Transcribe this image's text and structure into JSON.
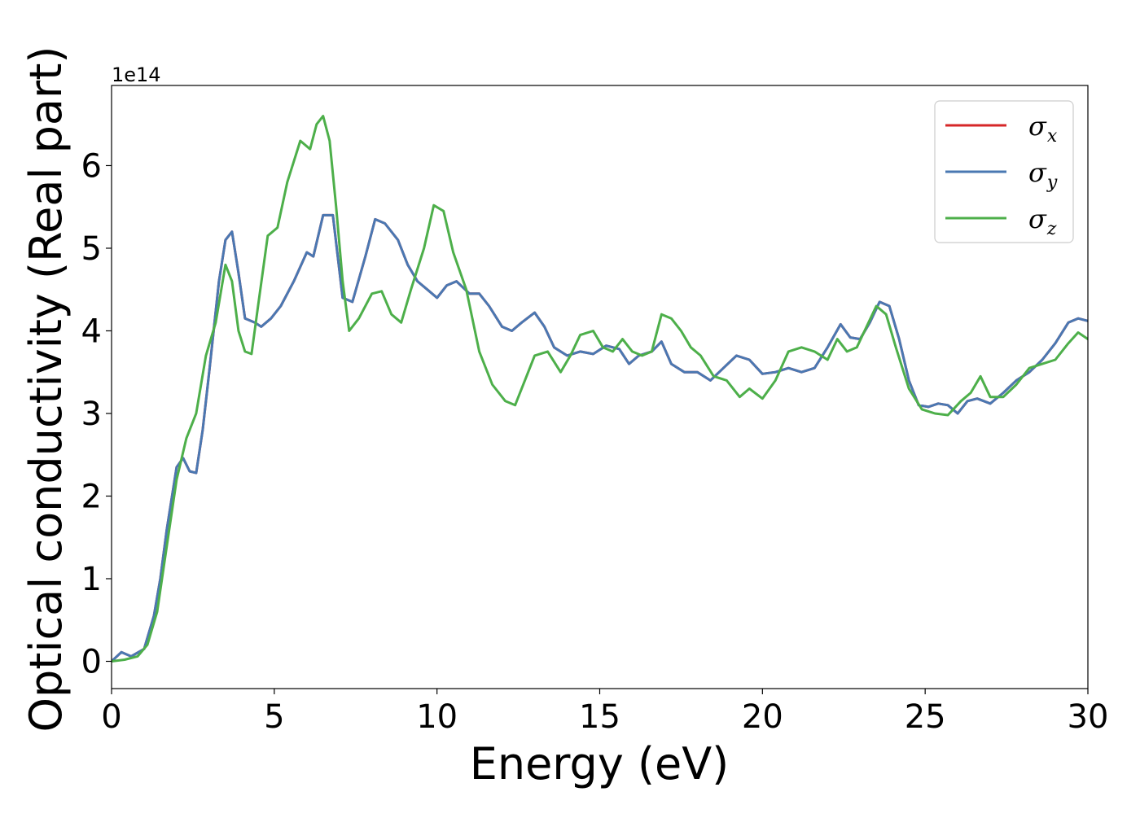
{
  "chart_data": {
    "type": "line",
    "xlabel": "Energy (eV)",
    "ylabel": "Optical conductivity (Real part)",
    "y_offset_label": "1e14",
    "xlim": [
      0,
      30
    ],
    "ylim": [
      -0.33,
      6.97
    ],
    "x_ticks": [
      0,
      5,
      10,
      15,
      20,
      25,
      30
    ],
    "y_ticks": [
      0,
      1,
      2,
      3,
      4,
      5,
      6
    ],
    "grid": false,
    "legend_position": "top-right",
    "series": [
      {
        "name": "σ_x",
        "legend_symbol": "σ",
        "legend_sub": "x",
        "color": "#d62728",
        "x": [
          0,
          0.3,
          0.6,
          1.0,
          1.3,
          1.5,
          1.7,
          2.0,
          2.2,
          2.4,
          2.6,
          2.8,
          3.0,
          3.3,
          3.5,
          3.7,
          3.9,
          4.1,
          4.4,
          4.6,
          4.9,
          5.2,
          5.6,
          6.0,
          6.2,
          6.5,
          6.8,
          7.1,
          7.4,
          7.8,
          8.1,
          8.4,
          8.8,
          9.1,
          9.4,
          9.7,
          10.0,
          10.3,
          10.6,
          11.0,
          11.3,
          11.6,
          12.0,
          12.3,
          12.6,
          13.0,
          13.3,
          13.6,
          14.0,
          14.4,
          14.8,
          15.2,
          15.6,
          15.9,
          16.2,
          16.6,
          16.9,
          17.2,
          17.6,
          18.0,
          18.4,
          18.8,
          19.2,
          19.6,
          20.0,
          20.4,
          20.8,
          21.2,
          21.6,
          22.0,
          22.4,
          22.7,
          23.0,
          23.3,
          23.6,
          23.9,
          24.2,
          24.5,
          24.8,
          25.1,
          25.4,
          25.7,
          26.0,
          26.3,
          26.6,
          27.0,
          27.4,
          27.8,
          28.2,
          28.6,
          29.0,
          29.4,
          29.7,
          30.0
        ],
        "y": [
          0,
          0.11,
          0.06,
          0.15,
          0.55,
          1.0,
          1.6,
          2.35,
          2.46,
          2.3,
          2.28,
          2.8,
          3.5,
          4.6,
          5.1,
          5.2,
          4.7,
          4.15,
          4.1,
          4.05,
          4.15,
          4.3,
          4.6,
          4.95,
          4.9,
          5.4,
          5.4,
          4.4,
          4.35,
          4.9,
          5.35,
          5.3,
          5.1,
          4.8,
          4.6,
          4.5,
          4.4,
          4.55,
          4.6,
          4.45,
          4.45,
          4.3,
          4.05,
          4.0,
          4.1,
          4.22,
          4.05,
          3.8,
          3.7,
          3.75,
          3.72,
          3.82,
          3.78,
          3.6,
          3.7,
          3.75,
          3.87,
          3.6,
          3.5,
          3.5,
          3.4,
          3.55,
          3.7,
          3.65,
          3.48,
          3.5,
          3.55,
          3.5,
          3.55,
          3.8,
          4.08,
          3.92,
          3.9,
          4.1,
          4.35,
          4.3,
          3.9,
          3.4,
          3.1,
          3.08,
          3.12,
          3.1,
          3.0,
          3.15,
          3.18,
          3.12,
          3.25,
          3.4,
          3.5,
          3.65,
          3.85,
          4.1,
          4.15,
          4.12
        ]
      },
      {
        "name": "σ_y",
        "legend_symbol": "σ",
        "legend_sub": "y",
        "color": "#4a78b2",
        "x": [
          0,
          0.3,
          0.6,
          1.0,
          1.3,
          1.5,
          1.7,
          2.0,
          2.2,
          2.4,
          2.6,
          2.8,
          3.0,
          3.3,
          3.5,
          3.7,
          3.9,
          4.1,
          4.4,
          4.6,
          4.9,
          5.2,
          5.6,
          6.0,
          6.2,
          6.5,
          6.8,
          7.1,
          7.4,
          7.8,
          8.1,
          8.4,
          8.8,
          9.1,
          9.4,
          9.7,
          10.0,
          10.3,
          10.6,
          11.0,
          11.3,
          11.6,
          12.0,
          12.3,
          12.6,
          13.0,
          13.3,
          13.6,
          14.0,
          14.4,
          14.8,
          15.2,
          15.6,
          15.9,
          16.2,
          16.6,
          16.9,
          17.2,
          17.6,
          18.0,
          18.4,
          18.8,
          19.2,
          19.6,
          20.0,
          20.4,
          20.8,
          21.2,
          21.6,
          22.0,
          22.4,
          22.7,
          23.0,
          23.3,
          23.6,
          23.9,
          24.2,
          24.5,
          24.8,
          25.1,
          25.4,
          25.7,
          26.0,
          26.3,
          26.6,
          27.0,
          27.4,
          27.8,
          28.2,
          28.6,
          29.0,
          29.4,
          29.7,
          30.0
        ],
        "y": [
          0,
          0.11,
          0.06,
          0.15,
          0.55,
          1.0,
          1.6,
          2.35,
          2.46,
          2.3,
          2.28,
          2.8,
          3.5,
          4.6,
          5.1,
          5.2,
          4.7,
          4.15,
          4.1,
          4.05,
          4.15,
          4.3,
          4.6,
          4.95,
          4.9,
          5.4,
          5.4,
          4.4,
          4.35,
          4.9,
          5.35,
          5.3,
          5.1,
          4.8,
          4.6,
          4.5,
          4.4,
          4.55,
          4.6,
          4.45,
          4.45,
          4.3,
          4.05,
          4.0,
          4.1,
          4.22,
          4.05,
          3.8,
          3.7,
          3.75,
          3.72,
          3.82,
          3.78,
          3.6,
          3.7,
          3.75,
          3.87,
          3.6,
          3.5,
          3.5,
          3.4,
          3.55,
          3.7,
          3.65,
          3.48,
          3.5,
          3.55,
          3.5,
          3.55,
          3.8,
          4.08,
          3.92,
          3.9,
          4.1,
          4.35,
          4.3,
          3.9,
          3.4,
          3.1,
          3.08,
          3.12,
          3.1,
          3.0,
          3.15,
          3.18,
          3.12,
          3.25,
          3.4,
          3.5,
          3.65,
          3.85,
          4.1,
          4.15,
          4.12
        ]
      },
      {
        "name": "σ_z",
        "legend_symbol": "σ",
        "legend_sub": "z",
        "color": "#4daf4a",
        "x": [
          0,
          0.4,
          0.8,
          1.1,
          1.4,
          1.7,
          2.0,
          2.3,
          2.6,
          2.9,
          3.2,
          3.5,
          3.7,
          3.9,
          4.1,
          4.3,
          4.5,
          4.8,
          5.1,
          5.4,
          5.8,
          6.1,
          6.3,
          6.5,
          6.7,
          6.9,
          7.1,
          7.3,
          7.6,
          8.0,
          8.3,
          8.6,
          8.9,
          9.2,
          9.6,
          9.9,
          10.2,
          10.5,
          10.9,
          11.3,
          11.7,
          12.1,
          12.4,
          12.7,
          13.0,
          13.4,
          13.8,
          14.1,
          14.4,
          14.8,
          15.1,
          15.4,
          15.7,
          16.0,
          16.3,
          16.6,
          16.9,
          17.2,
          17.5,
          17.8,
          18.1,
          18.5,
          18.9,
          19.3,
          19.6,
          20.0,
          20.4,
          20.8,
          21.2,
          21.6,
          22.0,
          22.3,
          22.6,
          22.9,
          23.2,
          23.5,
          23.8,
          24.1,
          24.5,
          24.9,
          25.3,
          25.7,
          26.1,
          26.4,
          26.7,
          27.0,
          27.4,
          27.8,
          28.2,
          28.6,
          29.0,
          29.4,
          29.7,
          30.0
        ],
        "y": [
          0,
          0.02,
          0.06,
          0.2,
          0.6,
          1.4,
          2.2,
          2.7,
          3.0,
          3.7,
          4.1,
          4.8,
          4.6,
          4.0,
          3.75,
          3.72,
          4.3,
          5.15,
          5.25,
          5.8,
          6.3,
          6.2,
          6.5,
          6.6,
          6.3,
          5.5,
          4.6,
          4.0,
          4.15,
          4.45,
          4.48,
          4.2,
          4.1,
          4.5,
          5.0,
          5.52,
          5.45,
          4.95,
          4.5,
          3.75,
          3.35,
          3.15,
          3.1,
          3.4,
          3.7,
          3.75,
          3.5,
          3.7,
          3.95,
          4.0,
          3.8,
          3.75,
          3.9,
          3.75,
          3.7,
          3.75,
          4.2,
          4.15,
          4.0,
          3.8,
          3.7,
          3.45,
          3.4,
          3.2,
          3.3,
          3.18,
          3.4,
          3.75,
          3.8,
          3.75,
          3.65,
          3.9,
          3.75,
          3.8,
          4.05,
          4.3,
          4.2,
          3.8,
          3.3,
          3.05,
          3.0,
          2.98,
          3.15,
          3.25,
          3.45,
          3.2,
          3.2,
          3.35,
          3.55,
          3.6,
          3.65,
          3.85,
          3.98,
          3.9
        ]
      }
    ]
  }
}
